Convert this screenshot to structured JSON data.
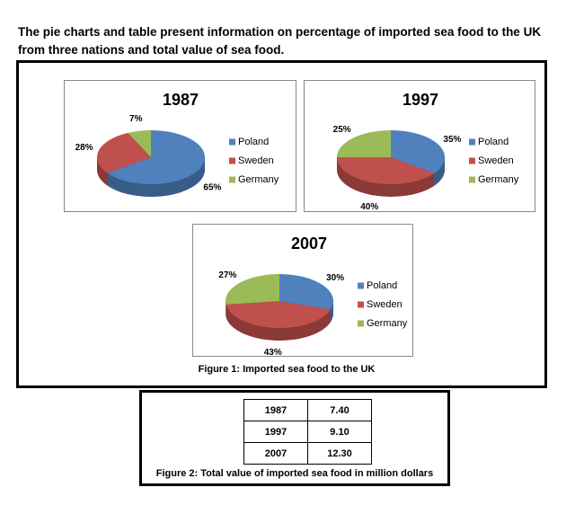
{
  "title": "The pie charts and table present information on percentage of imported sea food to the UK from three nations and total value of sea food.",
  "chart_data": [
    {
      "type": "pie",
      "title": "1987",
      "categories": [
        "Poland",
        "Sweden",
        "Germany"
      ],
      "values": [
        65,
        28,
        7
      ],
      "value_labels": [
        "65%",
        "28%",
        "7%"
      ],
      "colors": [
        "#4f81bd",
        "#c0504d",
        "#9bbb59"
      ]
    },
    {
      "type": "pie",
      "title": "1997",
      "categories": [
        "Poland",
        "Sweden",
        "Germany"
      ],
      "values": [
        35,
        40,
        25
      ],
      "value_labels": [
        "35%",
        "40%",
        "25%"
      ],
      "colors": [
        "#4f81bd",
        "#c0504d",
        "#9bbb59"
      ]
    },
    {
      "type": "pie",
      "title": "2007",
      "categories": [
        "Poland",
        "Sweden",
        "Germany"
      ],
      "values": [
        30,
        43,
        27
      ],
      "value_labels": [
        "30%",
        "43%",
        "27%"
      ],
      "colors": [
        "#4f81bd",
        "#c0504d",
        "#9bbb59"
      ]
    }
  ],
  "figure1_caption": "Figure 1: Imported sea food to the UK",
  "table": {
    "rows": [
      [
        "1987",
        "7.40"
      ],
      [
        "1997",
        "9.10"
      ],
      [
        "2007",
        "12.30"
      ]
    ]
  },
  "figure2_caption": "Figure 2: Total value of imported sea food in million dollars"
}
